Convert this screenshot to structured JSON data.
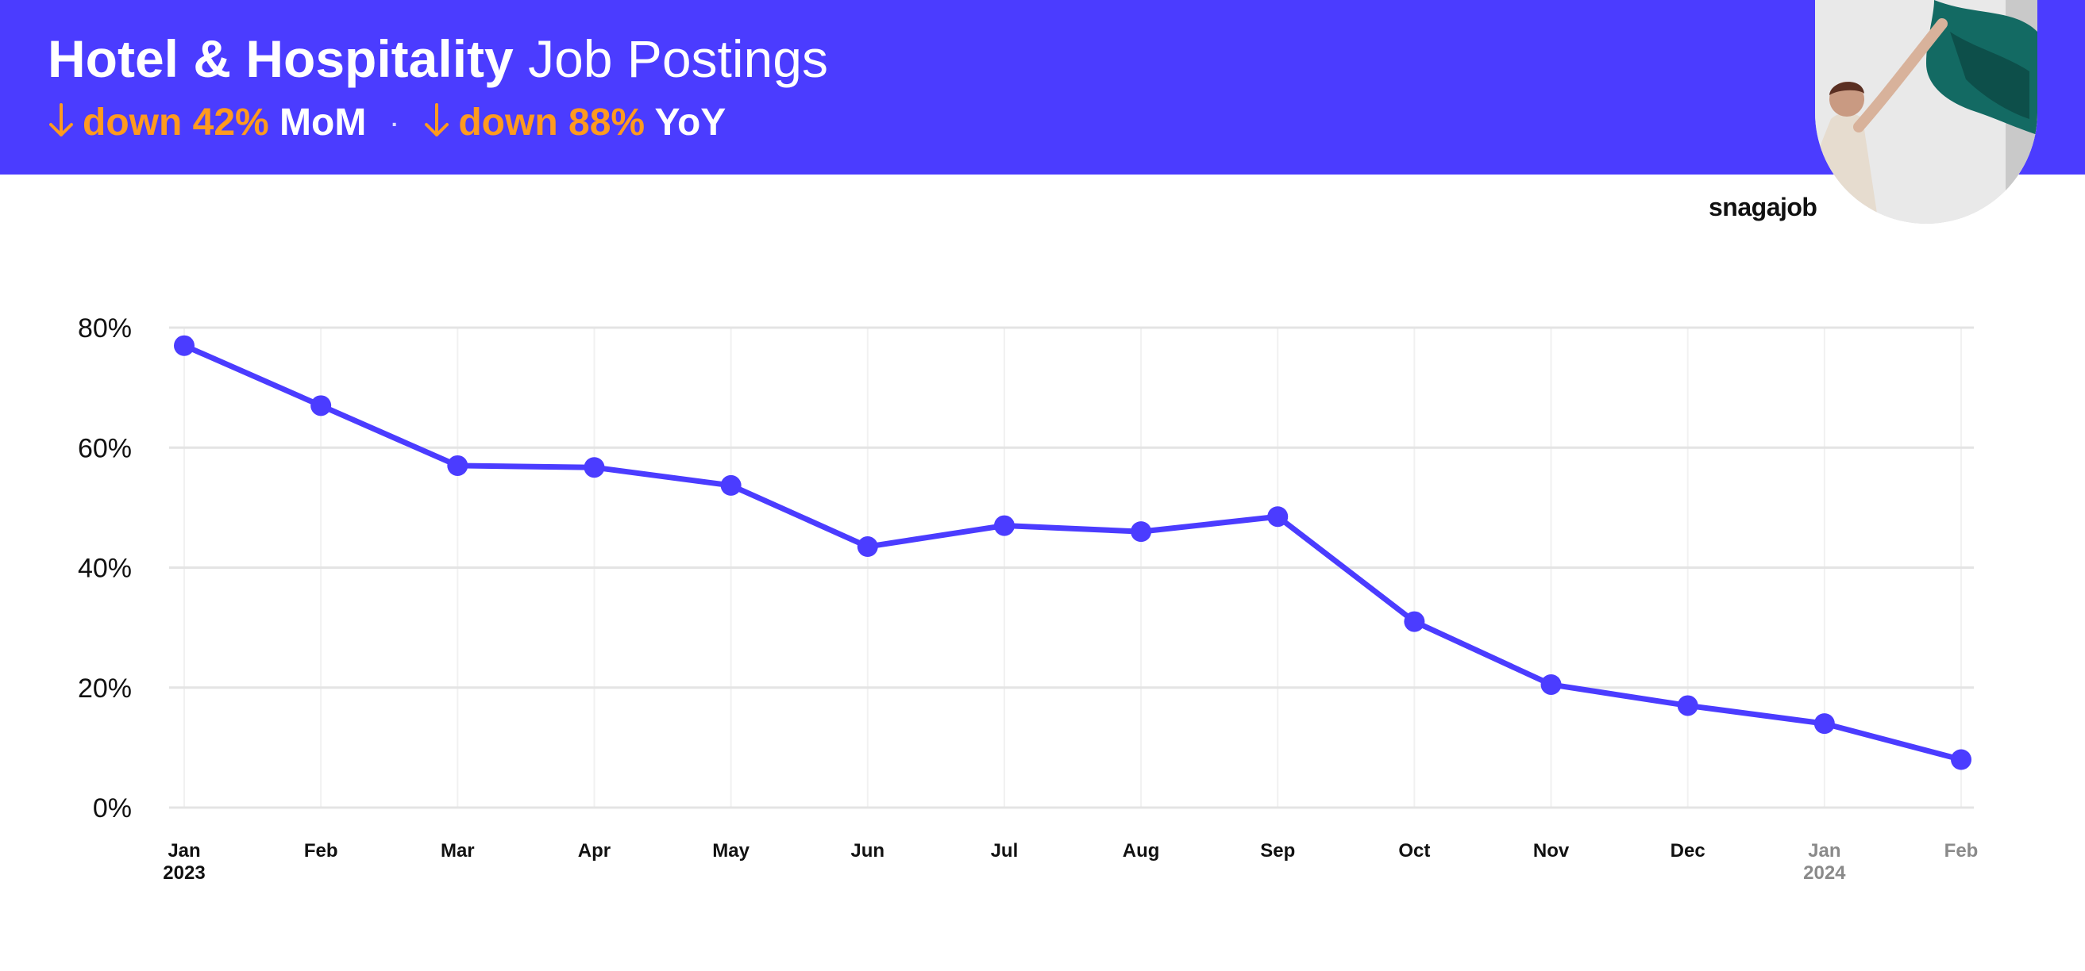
{
  "header": {
    "title_bold": "Hotel & Hospitality",
    "title_light": "Job Postings",
    "mom_change": "down 42%",
    "mom_label": "MoM",
    "separator": "·",
    "yoy_change": "down 88%",
    "yoy_label": "YoY",
    "arrow_icon": "arrow-down-icon",
    "accent_color": "#ff9a1f",
    "brand_color": "#4b3cff"
  },
  "logo": {
    "text": "snagajob"
  },
  "chart_data": {
    "type": "line",
    "categories": [
      "Jan",
      "Feb",
      "Mar",
      "Apr",
      "May",
      "Jun",
      "Jul",
      "Aug",
      "Sep",
      "Oct",
      "Nov",
      "Dec",
      "Jan",
      "Feb"
    ],
    "category_years": [
      "2023",
      "",
      "",
      "",
      "",
      "",
      "",
      "",
      "",
      "",
      "",
      "",
      "2024",
      ""
    ],
    "series": [
      {
        "values": [
          77,
          67,
          57,
          56.7,
          53.7,
          43.5,
          47,
          46,
          48.5,
          31,
          20.5,
          17,
          14,
          8
        ],
        "color": "#4b3cff"
      }
    ],
    "yticks": [
      "0%",
      "20%",
      "40%",
      "60%",
      "80%"
    ],
    "ytick_values": [
      0,
      20,
      40,
      60,
      80
    ],
    "ylim": [
      0,
      80
    ],
    "grid": true,
    "legend": "none",
    "dimmed_categories_from": 12
  }
}
